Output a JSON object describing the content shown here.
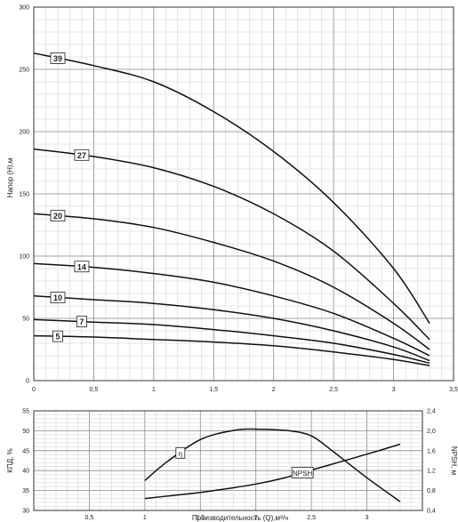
{
  "chart_data": [
    {
      "type": "line",
      "ylabel": "Напор (Н),м",
      "xlim": [
        0,
        3.5
      ],
      "ylim": [
        0,
        300
      ],
      "x_ticks": [
        "0",
        "0,5",
        "1",
        "1,5",
        "2",
        "2,5",
        "3",
        "3,5"
      ],
      "y_ticks": [
        "0",
        "50",
        "100",
        "150",
        "200",
        "250",
        "300"
      ],
      "grid": true,
      "series": [
        {
          "name": "39",
          "x": [
            0,
            0.5,
            1.0,
            1.5,
            2.0,
            2.5,
            3.0,
            3.3
          ],
          "values": [
            263,
            253,
            240,
            216,
            184,
            143,
            90,
            46
          ]
        },
        {
          "name": "27",
          "x": [
            0,
            0.5,
            1.0,
            1.5,
            2.0,
            2.5,
            3.0,
            3.3
          ],
          "values": [
            186,
            180,
            171,
            156,
            134,
            104,
            62,
            33
          ]
        },
        {
          "name": "20",
          "x": [
            0,
            0.5,
            1.0,
            1.5,
            2.0,
            2.5,
            3.0,
            3.3
          ],
          "values": [
            134,
            130,
            123,
            111,
            96,
            75,
            46,
            25
          ]
        },
        {
          "name": "14",
          "x": [
            0,
            0.5,
            1.0,
            1.5,
            2.0,
            2.5,
            3.0,
            3.3
          ],
          "values": [
            94,
            91,
            86,
            79,
            68,
            54,
            34,
            20
          ]
        },
        {
          "name": "10",
          "x": [
            0,
            0.5,
            1.0,
            1.5,
            2.0,
            2.5,
            3.0,
            3.3
          ],
          "values": [
            68,
            65,
            62,
            57,
            50,
            40,
            27,
            16
          ]
        },
        {
          "name": "7",
          "x": [
            0,
            0.5,
            1.0,
            1.5,
            2.0,
            2.5,
            3.0,
            3.3
          ],
          "values": [
            49,
            47,
            45,
            41,
            36,
            30,
            21,
            14
          ]
        },
        {
          "name": "5",
          "x": [
            0,
            0.5,
            1.0,
            1.5,
            2.0,
            2.5,
            3.0,
            3.3
          ],
          "values": [
            36,
            35,
            33,
            31,
            28,
            23,
            17,
            12
          ]
        }
      ]
    },
    {
      "type": "line",
      "xlabel": "Производительность (Q),м³/ч",
      "ylabel": "КПД, %",
      "y2label": "NPSH, м",
      "xlim": [
        0,
        3.5
      ],
      "ylim": [
        30,
        55
      ],
      "y2lim": [
        0.4,
        2.4
      ],
      "x_ticks": [
        "0,5",
        "1",
        "1,5",
        "2",
        "2,5",
        "3"
      ],
      "y_ticks": [
        "30",
        "35",
        "40",
        "45",
        "50",
        "55"
      ],
      "y2_ticks": [
        "0,4",
        "0,8",
        "1,2",
        "1,6",
        "2,0",
        "2,4"
      ],
      "grid": true,
      "series": [
        {
          "name": "η",
          "axis": "left",
          "x": [
            1.0,
            1.2,
            1.5,
            1.8,
            2.0,
            2.3,
            2.5,
            2.7,
            3.0,
            3.3
          ],
          "values": [
            37.5,
            42.2,
            47.8,
            50.1,
            50.4,
            50.0,
            48.7,
            44.7,
            38.2,
            32.2
          ]
        },
        {
          "name": "NPSH",
          "axis": "right",
          "x": [
            1.0,
            1.25,
            1.5,
            1.75,
            2.0,
            2.25,
            2.5,
            2.75,
            3.0,
            3.3
          ],
          "values": [
            0.64,
            0.7,
            0.76,
            0.84,
            0.93,
            1.05,
            1.21,
            1.37,
            1.53,
            1.73
          ]
        }
      ]
    }
  ]
}
